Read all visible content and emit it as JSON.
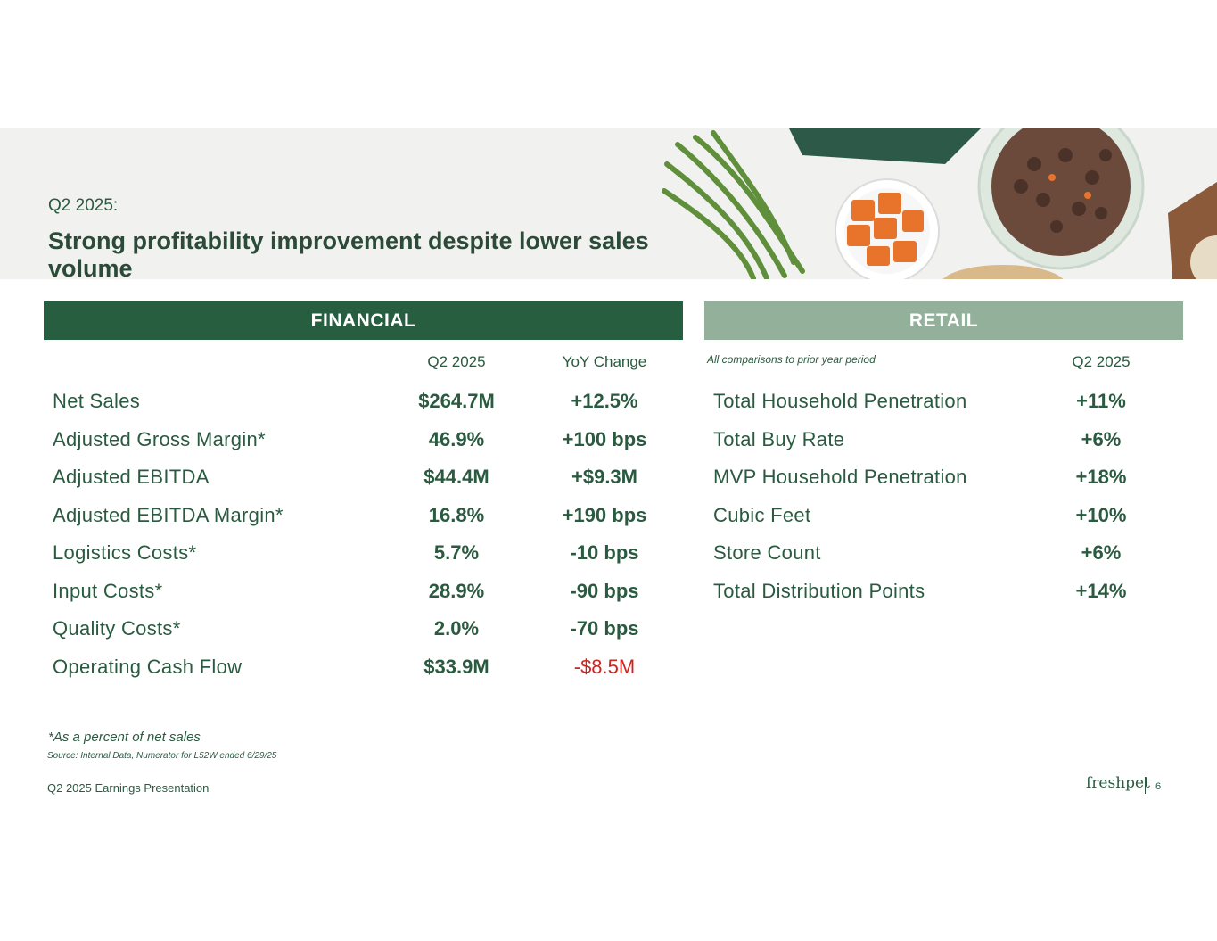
{
  "header": {
    "kicker": "Q2 2025:",
    "title": "Strong profitability improvement despite lower sales volume"
  },
  "financial": {
    "heading": "FINANCIAL",
    "col1": "Q2 2025",
    "col2": "YoY Change",
    "rows": [
      {
        "label": "Net Sales",
        "value": "$264.7M",
        "change": "+12.5%"
      },
      {
        "label": "Adjusted Gross Margin*",
        "value": "46.9%",
        "change": "+100 bps"
      },
      {
        "label": "Adjusted EBITDA",
        "value": "$44.4M",
        "change": "+$9.3M"
      },
      {
        "label": "Adjusted EBITDA Margin*",
        "value": "16.8%",
        "change": "+190 bps"
      },
      {
        "label": "Logistics Costs*",
        "value": "5.7%",
        "change": "-10 bps"
      },
      {
        "label": "Input Costs*",
        "value": "28.9%",
        "change": "-90 bps"
      },
      {
        "label": "Quality Costs*",
        "value": "2.0%",
        "change": "-70 bps"
      },
      {
        "label": "Operating Cash Flow",
        "value": "$33.9M",
        "change": "-$8.5M"
      }
    ]
  },
  "retail": {
    "heading": "RETAIL",
    "note": "All comparisons to prior year period",
    "col1": "Q2 2025",
    "rows": [
      {
        "label": "Total Household Penetration",
        "value": "+11%"
      },
      {
        "label": "Total Buy Rate",
        "value": "+6%"
      },
      {
        "label": "MVP Household Penetration",
        "value": "+18%"
      },
      {
        "label": "Cubic Feet",
        "value": "+10%"
      },
      {
        "label": "Store Count",
        "value": "+6%"
      },
      {
        "label": "Total Distribution Points",
        "value": "+14%"
      }
    ]
  },
  "footer": {
    "footnote": "*As a percent of net sales",
    "source": "Source: Internal Data, Numerator for L52W ended 6/29/25",
    "presentation": "Q2 2025 Earnings Presentation",
    "logo": "freshpet",
    "page": "6"
  },
  "colors": {
    "green": "#275e40",
    "sage": "#93b09b",
    "negative": "#d0231f"
  }
}
